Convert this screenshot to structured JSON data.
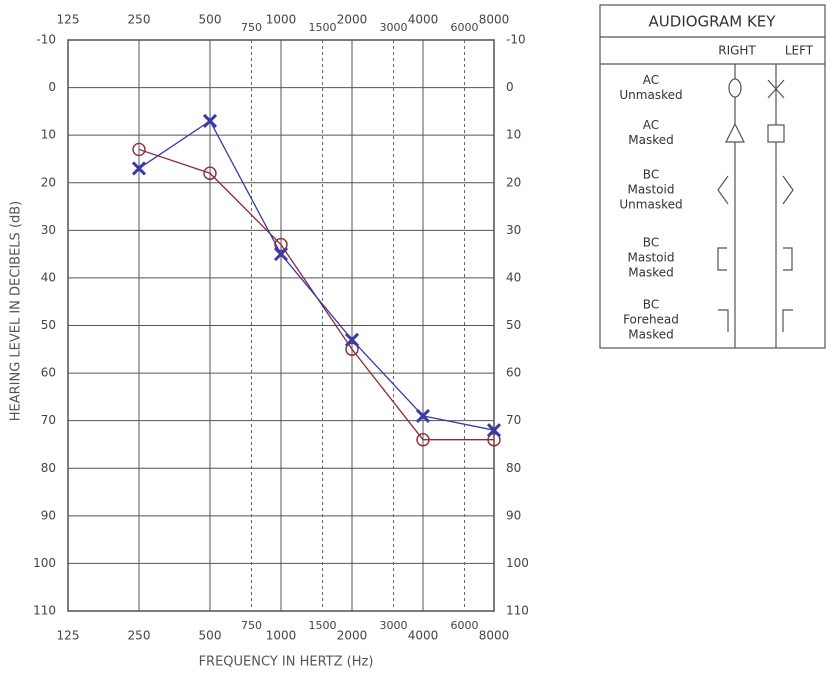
{
  "chart_data": {
    "type": "line",
    "ylabel": "HEARING LEVEL IN DECIBELS (dB)",
    "xlabel": "FREQUENCY IN HERTZ (Hz)",
    "log_x": true,
    "invert_y": true,
    "grid": true,
    "xlim": [
      125,
      8000
    ],
    "xticks": [
      125,
      250,
      500,
      1000,
      2000,
      4000,
      8000
    ],
    "xticks_mid": [
      750,
      1500,
      3000,
      6000
    ],
    "ylim": [
      -10,
      110
    ],
    "yticks": [
      -10,
      0,
      10,
      20,
      30,
      40,
      50,
      60,
      70,
      80,
      90,
      100,
      110
    ],
    "series": [
      {
        "name": "RIGHT",
        "color": "#8b2a3a",
        "marker": "circle",
        "x": [
          250,
          500,
          1000,
          2000,
          4000,
          8000
        ],
        "values": [
          13,
          18,
          33,
          55,
          74,
          74
        ]
      },
      {
        "name": "LEFT",
        "color": "#3a3aa8",
        "marker": "x",
        "x": [
          250,
          500,
          1000,
          2000,
          4000,
          8000
        ],
        "values": [
          17,
          7,
          35,
          53,
          69,
          72
        ]
      }
    ]
  },
  "key": {
    "title": "AUDIOGRAM KEY",
    "rows": [
      [
        "AC",
        "Unmasked"
      ],
      [
        "AC",
        "Masked"
      ],
      [
        "BC",
        "Mastoid",
        "Unmasked"
      ],
      [
        "BC",
        "Mastoid",
        "Masked"
      ],
      [
        "BC",
        "Forehead",
        "Masked"
      ]
    ]
  }
}
